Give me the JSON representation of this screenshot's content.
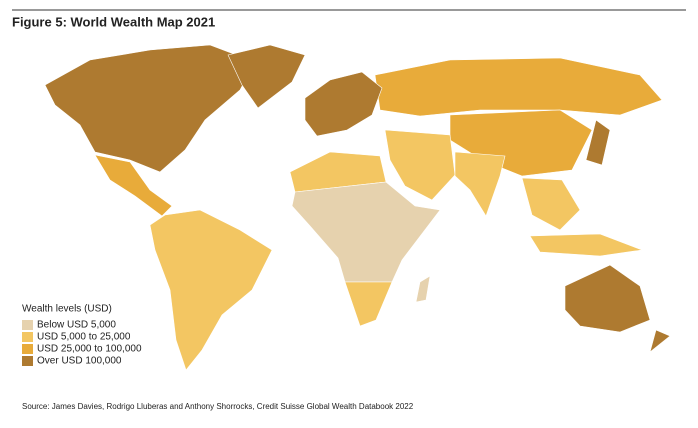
{
  "title": "Figure 5: World Wealth Map 2021",
  "legend": {
    "title": "Wealth levels (USD)",
    "items": [
      {
        "label": "Below USD 5,000",
        "color": "#e6d2ae"
      },
      {
        "label": "USD 5,000 to 25,000",
        "color": "#f3c662"
      },
      {
        "label": "USD 25,000 to 100,000",
        "color": "#e8ab3a"
      },
      {
        "label": "Over USD 100,000",
        "color": "#ae7a30"
      }
    ]
  },
  "source": "Source: James Davies, Rodrigo Lluberas and Anthony Shorrocks, Credit Suisse Global Wealth Databook 2022"
}
